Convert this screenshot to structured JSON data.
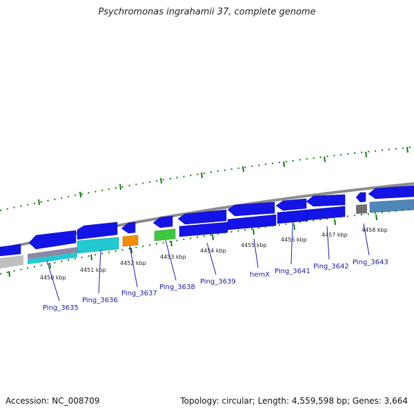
{
  "title": "Psychromonas ingrahamii 37, complete genome",
  "footer": {
    "accession": "Accession: NC_008709",
    "topology": "Topology: circular; Length: 4,559,598 bp; Genes: 3,664"
  },
  "colors": {
    "cds_forward": "#1414e6",
    "cds_reverse": "#1414e6",
    "backbone": "#888888",
    "tick": "#0a7a0a",
    "label": "#1a1aa0",
    "gene_cyan": "#22c8d2",
    "gene_orange": "#f28c00",
    "gene_green": "#3cc83c",
    "gene_steel": "#4f86b8",
    "gene_gray": "#808080",
    "gene_silver": "#bfbfbf"
  },
  "kbp_labels": [
    "4450 kbp",
    "4451 kbp",
    "4452 kbp",
    "4453 kbp",
    "4454 kbp",
    "4455 kbp",
    "4456 kbp",
    "4457 kbp",
    "4458 kbp"
  ],
  "gene_labels": [
    "Ping_3635",
    "Ping_3636",
    "Ping_3637",
    "Ping_3638",
    "Ping_3639",
    "hemX",
    "Ping_3641",
    "Ping_3642",
    "Ping_3643"
  ]
}
